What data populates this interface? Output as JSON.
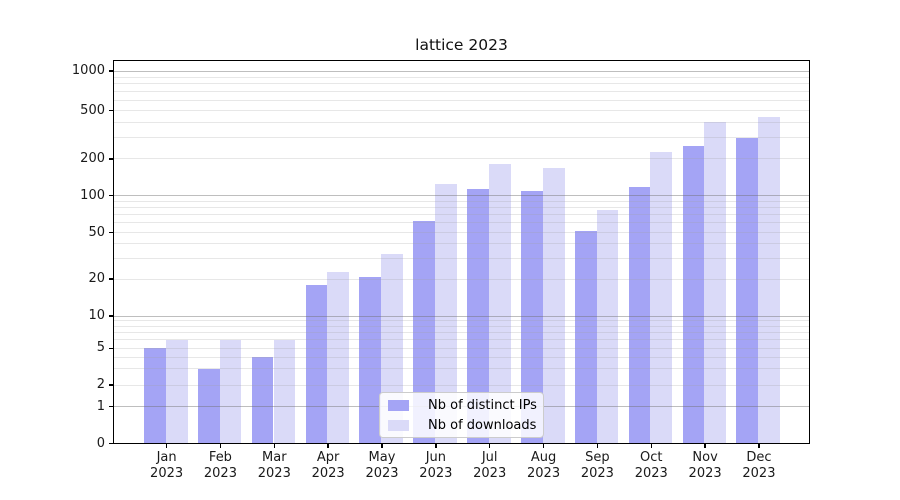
{
  "title": "lattice 2023",
  "chart_data": {
    "type": "bar",
    "title": "lattice 2023",
    "categories": [
      "Jan 2023",
      "Feb 2023",
      "Mar 2023",
      "Apr 2023",
      "May 2023",
      "Jun 2023",
      "Jul 2023",
      "Aug 2023",
      "Sep 2023",
      "Oct 2023",
      "Nov 2023",
      "Dec 2023"
    ],
    "series": [
      {
        "name": "Nb of distinct IPs",
        "color": "#a4a4f5",
        "values": [
          5,
          3,
          4,
          18,
          21,
          62,
          114,
          110,
          51,
          119,
          255,
          300
        ]
      },
      {
        "name": "Nb of downloads",
        "color": "#dadaf8",
        "values": [
          6,
          6,
          6,
          23,
          33,
          125,
          181,
          167,
          77,
          230,
          400,
          445
        ]
      }
    ],
    "yscale": "symlog",
    "ylim": [
      0,
      1000
    ],
    "yticks": [
      0,
      1,
      2,
      5,
      10,
      20,
      50,
      100,
      200,
      500,
      1000
    ],
    "minor_yticks": [
      3,
      4,
      6,
      7,
      8,
      9,
      30,
      40,
      60,
      70,
      80,
      90,
      300,
      400,
      600,
      700,
      800,
      900
    ],
    "grid": true,
    "legend_position": "lower center"
  },
  "colors": {
    "grid_major": "rgba(110,110,110,0.45)",
    "grid_minor": "rgba(160,160,160,0.25)",
    "spine": "#000000",
    "text": "#1a1a1a"
  }
}
